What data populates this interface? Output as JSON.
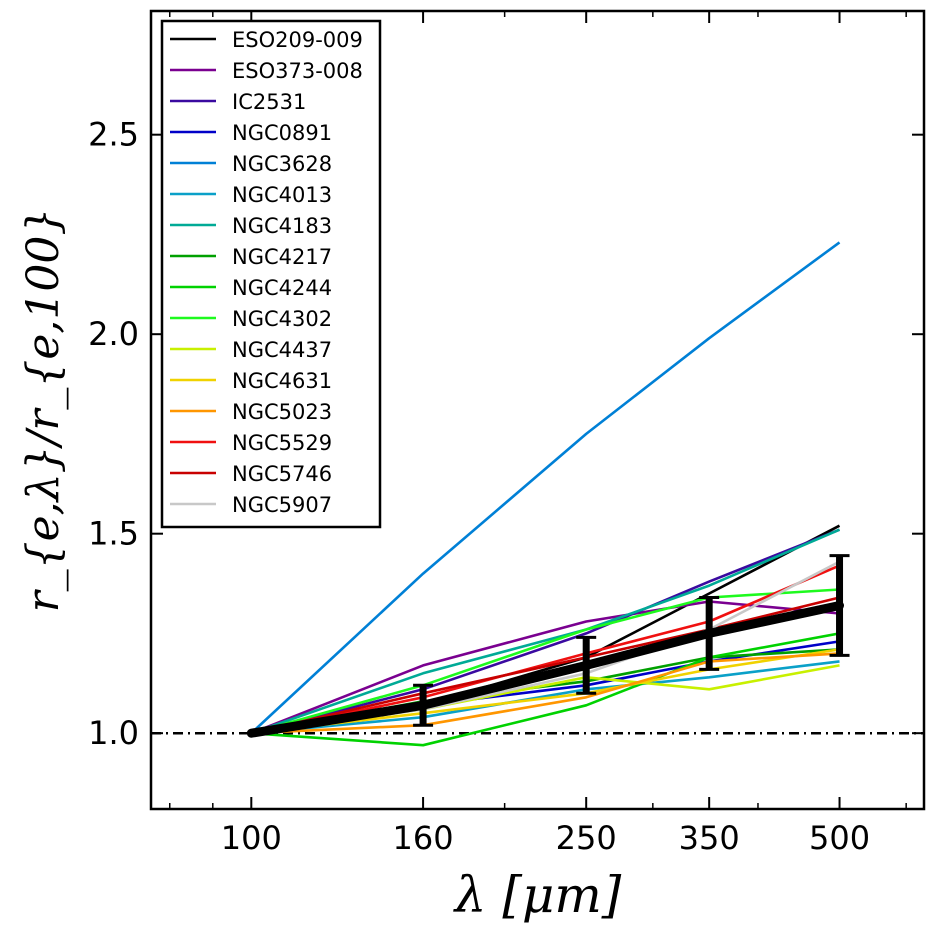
{
  "chart_data": {
    "type": "line",
    "xscale": "log",
    "x": [
      100,
      160,
      250,
      350,
      500
    ],
    "xticks": [
      "100",
      "160",
      "250",
      "350",
      "500"
    ],
    "yticks": [
      "1.0",
      "1.5",
      "2.0",
      "2.5"
    ],
    "xlim": [
      76,
      630
    ],
    "ylim": [
      0.81,
      2.81
    ],
    "xlabel": "λ [μm]",
    "ylabel": "r_{e,λ}/r_{e,100}",
    "reference_line": {
      "y": 1.0,
      "style": "dash-dot",
      "color": "#000000"
    },
    "legend_position": "top-left",
    "series": [
      {
        "name": "ESO209-009",
        "color": "#000000",
        "values": [
          1.0,
          1.07,
          1.19,
          1.35,
          1.52
        ]
      },
      {
        "name": "ESO373-008",
        "color": "#7a0090",
        "values": [
          1.0,
          1.17,
          1.28,
          1.33,
          1.3
        ]
      },
      {
        "name": "IC2531",
        "color": "#3a0aa0",
        "values": [
          1.0,
          1.11,
          1.25,
          1.38,
          1.51
        ]
      },
      {
        "name": "NGC0891",
        "color": "#0000c8",
        "values": [
          1.0,
          1.07,
          1.12,
          1.18,
          1.23
        ]
      },
      {
        "name": "NGC3628",
        "color": "#0080d6",
        "values": [
          1.0,
          1.4,
          1.75,
          1.99,
          2.23
        ]
      },
      {
        "name": "NGC4013",
        "color": "#0aa0c8",
        "values": [
          1.0,
          1.04,
          1.11,
          1.14,
          1.18
        ]
      },
      {
        "name": "NGC4183",
        "color": "#00aa96",
        "values": [
          1.0,
          1.15,
          1.26,
          1.37,
          1.51
        ]
      },
      {
        "name": "NGC4217",
        "color": "#00a000",
        "values": [
          1.0,
          1.08,
          1.13,
          1.19,
          1.21
        ]
      },
      {
        "name": "NGC4244",
        "color": "#00d200",
        "values": [
          1.0,
          0.97,
          1.07,
          1.19,
          1.25
        ]
      },
      {
        "name": "NGC4302",
        "color": "#1efa1e",
        "values": [
          1.0,
          1.12,
          1.26,
          1.34,
          1.36
        ]
      },
      {
        "name": "NGC4437",
        "color": "#c8f000",
        "values": [
          1.0,
          1.06,
          1.14,
          1.11,
          1.17
        ]
      },
      {
        "name": "NGC4631",
        "color": "#f0d200",
        "values": [
          1.0,
          1.05,
          1.1,
          1.16,
          1.21
        ]
      },
      {
        "name": "NGC5023",
        "color": "#ff9600",
        "values": [
          1.0,
          1.02,
          1.09,
          1.18,
          1.2
        ]
      },
      {
        "name": "NGC5529",
        "color": "#f01010",
        "values": [
          1.0,
          1.09,
          1.2,
          1.28,
          1.42
        ]
      },
      {
        "name": "NGC5746",
        "color": "#c80000",
        "values": [
          1.0,
          1.1,
          1.19,
          1.26,
          1.34
        ]
      },
      {
        "name": "NGC5907",
        "color": "#c8c8c8",
        "values": [
          1.0,
          1.06,
          1.15,
          1.26,
          1.43
        ]
      }
    ],
    "mean": {
      "color": "#000000",
      "values": [
        1.0,
        1.07,
        1.17,
        1.25,
        1.32
      ],
      "error": [
        0.0,
        0.05,
        0.07,
        0.09,
        0.125
      ]
    }
  }
}
